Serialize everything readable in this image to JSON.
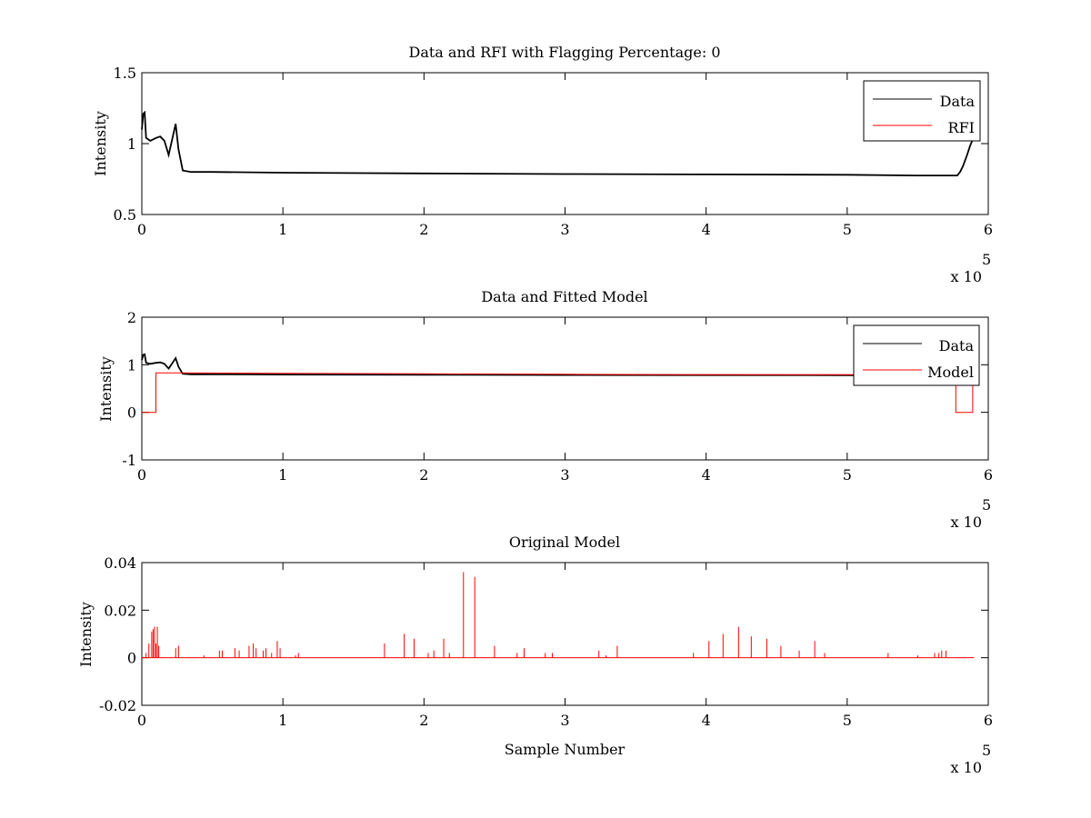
{
  "chart_data": [
    {
      "type": "line",
      "title": "Data and RFI with Flagging Percentage: 0",
      "xlabel": "",
      "ylabel": "Intensity",
      "xlim": [
        0,
        6
      ],
      "ylim": [
        0.5,
        1.5
      ],
      "x_ticks": [
        "0",
        "1",
        "2",
        "3",
        "4",
        "5",
        "6"
      ],
      "y_ticks": [
        "0.5",
        "1",
        "1.5"
      ],
      "x_multiplier": "x 10",
      "x_multiplier_exp": "5",
      "legend": {
        "position": "top-right",
        "entries": [
          "Data",
          "RFI"
        ]
      },
      "series": [
        {
          "name": "Data",
          "color": "#000000",
          "points": [
            [
              0,
              1.1
            ],
            [
              0.01,
              1.21
            ],
            [
              0.02,
              1.22
            ],
            [
              0.03,
              1.04
            ],
            [
              0.06,
              1.02
            ],
            [
              0.1,
              1.04
            ],
            [
              0.13,
              1.05
            ],
            [
              0.16,
              1.02
            ],
            [
              0.19,
              0.92
            ],
            [
              0.22,
              1.05
            ],
            [
              0.24,
              1.14
            ],
            [
              0.26,
              0.96
            ],
            [
              0.29,
              0.81
            ],
            [
              0.35,
              0.8
            ],
            [
              0.5,
              0.8
            ],
            [
              1.0,
              0.795
            ],
            [
              2.0,
              0.79
            ],
            [
              3.0,
              0.785
            ],
            [
              4.0,
              0.783
            ],
            [
              5.0,
              0.78
            ],
            [
              5.5,
              0.775
            ],
            [
              5.78,
              0.775
            ],
            [
              5.8,
              0.8
            ],
            [
              5.82,
              0.84
            ],
            [
              5.85,
              0.92
            ],
            [
              5.87,
              0.98
            ],
            [
              5.89,
              1.03
            ],
            [
              5.91,
              1.06
            ]
          ]
        },
        {
          "name": "RFI",
          "color": "#ff0000",
          "points": []
        }
      ]
    },
    {
      "type": "line",
      "title": "Data and Fitted Model",
      "xlabel": "",
      "ylabel": "Intensity",
      "xlim": [
        0,
        6
      ],
      "ylim": [
        -1,
        2
      ],
      "x_ticks": [
        "0",
        "1",
        "2",
        "3",
        "4",
        "5",
        "6"
      ],
      "y_ticks": [
        "-1",
        "0",
        "1",
        "2"
      ],
      "x_multiplier": "x 10",
      "x_multiplier_exp": "5",
      "legend": {
        "position": "top-right",
        "entries": [
          "Data",
          "Model"
        ]
      },
      "series": [
        {
          "name": "Data",
          "color": "#000000",
          "points": [
            [
              0,
              1.1
            ],
            [
              0.01,
              1.21
            ],
            [
              0.02,
              1.22
            ],
            [
              0.03,
              1.04
            ],
            [
              0.06,
              1.02
            ],
            [
              0.1,
              1.04
            ],
            [
              0.13,
              1.05
            ],
            [
              0.16,
              1.02
            ],
            [
              0.19,
              0.92
            ],
            [
              0.22,
              1.05
            ],
            [
              0.24,
              1.14
            ],
            [
              0.26,
              0.96
            ],
            [
              0.29,
              0.81
            ],
            [
              0.35,
              0.8
            ],
            [
              0.5,
              0.8
            ],
            [
              1.0,
              0.795
            ],
            [
              2.0,
              0.79
            ],
            [
              3.0,
              0.785
            ],
            [
              4.0,
              0.783
            ],
            [
              5.0,
              0.78
            ],
            [
              5.5,
              0.775
            ],
            [
              5.78,
              0.775
            ],
            [
              5.8,
              0.8
            ],
            [
              5.82,
              0.84
            ],
            [
              5.85,
              0.92
            ],
            [
              5.87,
              0.98
            ],
            [
              5.89,
              1.03
            ],
            [
              5.91,
              1.06
            ]
          ]
        },
        {
          "name": "Model",
          "color": "#ff0000",
          "points": [
            [
              0,
              0
            ],
            [
              0.1,
              0
            ],
            [
              0.1,
              0.83
            ],
            [
              0.3,
              0.83
            ],
            [
              1.0,
              0.82
            ],
            [
              2.0,
              0.81
            ],
            [
              3.0,
              0.8
            ],
            [
              4.0,
              0.79
            ],
            [
              5.0,
              0.79
            ],
            [
              5.77,
              0.79
            ],
            [
              5.77,
              0
            ],
            [
              5.89,
              0
            ],
            [
              5.89,
              0.83
            ]
          ]
        }
      ]
    },
    {
      "type": "line",
      "title": "Original Model",
      "xlabel": "Sample Number",
      "ylabel": "Intensity",
      "xlim": [
        0,
        6
      ],
      "ylim": [
        -0.02,
        0.04
      ],
      "x_ticks": [
        "0",
        "1",
        "2",
        "3",
        "4",
        "5",
        "6"
      ],
      "y_ticks": [
        "-0.02",
        "0",
        "0.02",
        "0.04"
      ],
      "x_multiplier": "x 10",
      "x_multiplier_exp": "5",
      "series": [
        {
          "name": "Original Model",
          "color": "#ff0000",
          "baseline": 0,
          "x_end": 5.9,
          "spikes": [
            [
              0.03,
              0.002
            ],
            [
              0.05,
              0.006
            ],
            [
              0.07,
              0.011
            ],
            [
              0.08,
              0.012
            ],
            [
              0.09,
              0.013
            ],
            [
              0.1,
              0.006
            ],
            [
              0.11,
              0.013
            ],
            [
              0.12,
              0.005
            ],
            [
              0.24,
              0.004
            ],
            [
              0.26,
              0.005
            ],
            [
              0.44,
              0.001
            ],
            [
              0.55,
              0.003
            ],
            [
              0.57,
              0.003
            ],
            [
              0.66,
              0.004
            ],
            [
              0.69,
              0.003
            ],
            [
              0.76,
              0.005
            ],
            [
              0.79,
              0.006
            ],
            [
              0.81,
              0.004
            ],
            [
              0.86,
              0.003
            ],
            [
              0.88,
              0.004
            ],
            [
              0.92,
              0.002
            ],
            [
              0.96,
              0.007
            ],
            [
              0.98,
              0.004
            ],
            [
              1.09,
              0.001
            ],
            [
              1.11,
              0.002
            ],
            [
              1.72,
              0.006
            ],
            [
              1.86,
              0.01
            ],
            [
              1.93,
              0.008
            ],
            [
              2.03,
              0.002
            ],
            [
              2.07,
              0.003
            ],
            [
              2.14,
              0.008
            ],
            [
              2.18,
              0.002
            ],
            [
              2.28,
              0.036
            ],
            [
              2.36,
              0.034
            ],
            [
              2.5,
              0.005
            ],
            [
              2.66,
              0.002
            ],
            [
              2.71,
              0.004
            ],
            [
              2.86,
              0.002
            ],
            [
              2.91,
              0.002
            ],
            [
              3.24,
              0.003
            ],
            [
              3.29,
              0.001
            ],
            [
              3.37,
              0.005
            ],
            [
              3.91,
              0.002
            ],
            [
              4.02,
              0.007
            ],
            [
              4.12,
              0.01
            ],
            [
              4.23,
              0.013
            ],
            [
              4.32,
              0.009
            ],
            [
              4.43,
              0.008
            ],
            [
              4.53,
              0.005
            ],
            [
              4.66,
              0.003
            ],
            [
              4.77,
              0.007
            ],
            [
              4.84,
              0.002
            ],
            [
              5.29,
              0.002
            ],
            [
              5.5,
              0.001
            ],
            [
              5.62,
              0.002
            ],
            [
              5.65,
              0.002
            ],
            [
              5.67,
              0.003
            ],
            [
              5.7,
              0.003
            ]
          ]
        }
      ]
    }
  ]
}
